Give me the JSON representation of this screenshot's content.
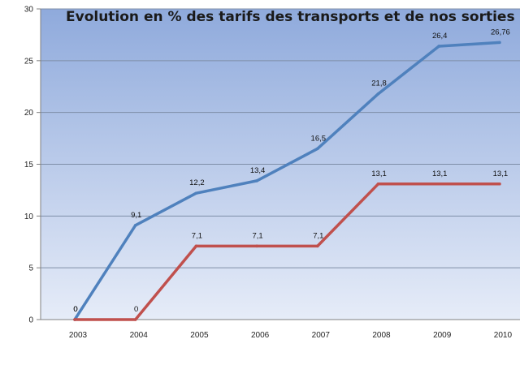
{
  "chart_data": {
    "type": "line",
    "title": "Evolution en % des tarifs des transports et de nos sorties",
    "categories": [
      "2003",
      "2004",
      "2005",
      "2006",
      "2007",
      "2008",
      "2009",
      "2010"
    ],
    "series": [
      {
        "color": "#4f81bd",
        "values": [
          0,
          9.1,
          12.2,
          13.4,
          16.5,
          21.8,
          26.4,
          26.76
        ],
        "labels": [
          "0",
          "9,1",
          "12,2",
          "13,4",
          "16,5",
          "21,8",
          "26,4",
          "26,76"
        ]
      },
      {
        "color": "#c0504d",
        "values": [
          0,
          0,
          7.1,
          7.1,
          7.1,
          13.1,
          13.1,
          13.1
        ],
        "labels": [
          "0",
          "0",
          "7,1",
          "7,1",
          "7,1",
          "13,1",
          "13,1",
          "13,1"
        ]
      }
    ],
    "ylim": [
      0,
      30
    ],
    "yticks": [
      0,
      5,
      10,
      15,
      20,
      25,
      30
    ],
    "grid": true,
    "legend": "none",
    "plot_background": {
      "top": "#8faadc",
      "bottom": "#e6ecf8"
    }
  }
}
